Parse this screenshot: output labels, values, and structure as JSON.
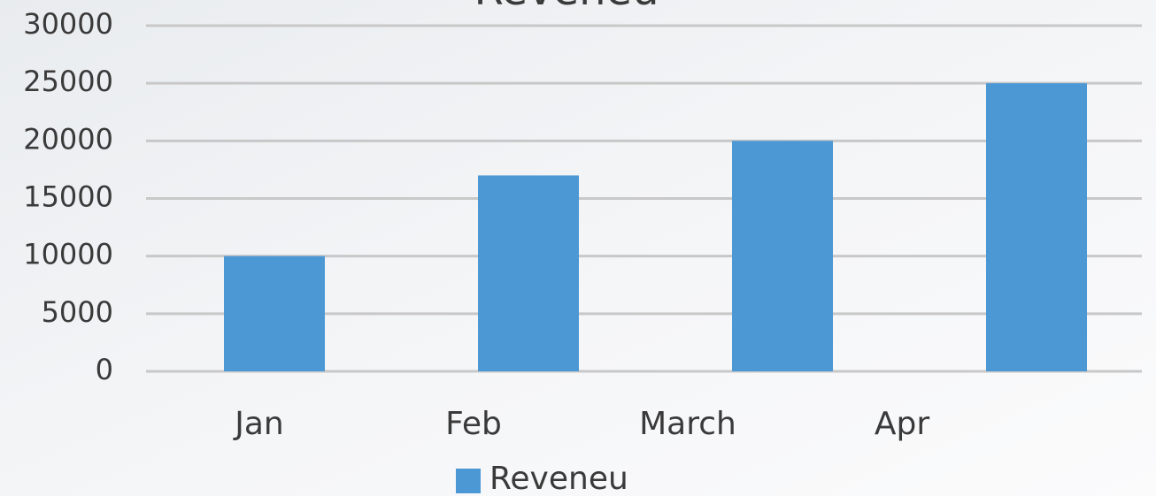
{
  "chart_data": {
    "type": "bar",
    "title": "Reveneu",
    "categories": [
      "Jan",
      "Feb",
      "March",
      "Apr"
    ],
    "series": [
      {
        "name": "Reveneu",
        "color": "#4b98d5",
        "values": [
          10000,
          17000,
          20000,
          25000
        ]
      }
    ],
    "ylim": [
      0,
      30000
    ],
    "yticks": [
      0,
      5000,
      10000,
      15000,
      20000,
      25000,
      30000
    ],
    "grid": true
  }
}
